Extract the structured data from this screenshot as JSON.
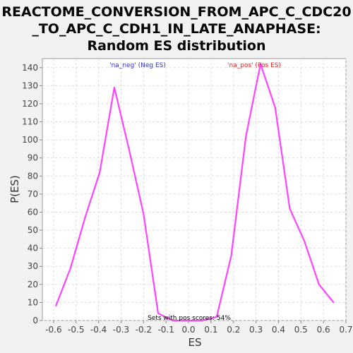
{
  "chart_data": {
    "type": "line",
    "title_lines": [
      "REACTOME_CONVERSION_FROM_APC_C_CDC20",
      "_TO_APC_C_CDH1_IN_LATE_ANAPHASE:",
      "Random ES distribution"
    ],
    "xlabel": "ES",
    "ylabel": "P(ES)",
    "xlim": [
      -0.65,
      0.7
    ],
    "ylim": [
      0,
      145
    ],
    "x_ticks": [
      -0.6,
      -0.5,
      -0.4,
      -0.3,
      -0.2,
      -0.1,
      0.0,
      0.1,
      0.2,
      0.3,
      0.4,
      0.5,
      0.6,
      0.7
    ],
    "x_tick_labels": [
      "-0.6",
      "-0.5",
      "-0.4",
      "-0.3",
      "-0.2",
      "-0.1",
      "0.0",
      "0.1",
      "0.2",
      "0.3",
      "0.4",
      "0.5",
      "0.6",
      "0.7"
    ],
    "y_ticks": [
      0,
      10,
      20,
      30,
      40,
      50,
      60,
      70,
      80,
      90,
      100,
      110,
      120,
      130,
      140
    ],
    "grid": true,
    "line_color": "#ff44ff",
    "series": [
      {
        "points": [
          [
            -0.59,
            8
          ],
          [
            -0.525,
            29
          ],
          [
            -0.46,
            57
          ],
          [
            -0.395,
            82
          ],
          [
            -0.33,
            129
          ],
          [
            -0.265,
            95
          ],
          [
            -0.2,
            59
          ],
          [
            -0.135,
            4
          ],
          [
            -0.07,
            0
          ],
          [
            0.0,
            0
          ],
          [
            0.06,
            0
          ],
          [
            0.125,
            2
          ],
          [
            0.19,
            36
          ],
          [
            0.255,
            102
          ],
          [
            0.32,
            142
          ],
          [
            0.385,
            118
          ],
          [
            0.45,
            62
          ],
          [
            0.515,
            44
          ],
          [
            0.58,
            20
          ],
          [
            0.645,
            10
          ]
        ]
      }
    ],
    "annotations": {
      "neg_label": "'na_neg' (Neg ES)",
      "pos_label": "'na_pos' (Pos ES)",
      "footer": "Sets with pos scores: 54%"
    },
    "colors": {
      "neg_label": "#3333cc",
      "pos_label": "#dd2222",
      "plot_bg": "#ffffff",
      "page_bg": "#f2f2f2",
      "grid": "#dddddd"
    }
  }
}
